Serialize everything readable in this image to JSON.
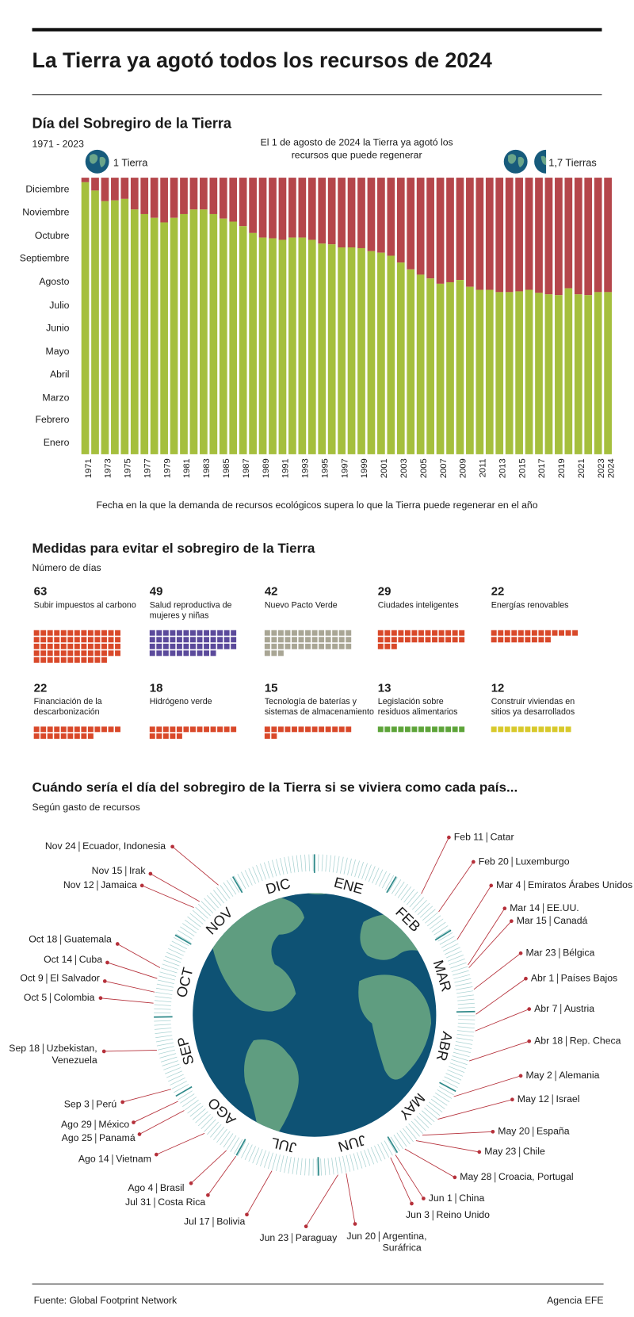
{
  "title": "La Tierra ya agotó todos los recursos de 2024",
  "source": "Fuente: Global Footprint Network",
  "agency": "Agencia EFE",
  "chart_data": [
    {
      "type": "bar",
      "title": "Día del Sobregiro de la Tierra",
      "subtitle": "1971 - 2023",
      "note": [
        "El 1 de agosto de 2024 la Tierra ya agotó los",
        "recursos que puede regenerar"
      ],
      "annotations": [
        "1 Tierra",
        "1,7 Tierras"
      ],
      "caption": "Fecha en la que la demanda de recursos ecológicos supera lo que la Tierra puede regenerar en el año",
      "categories": [
        "1971",
        null,
        "1973",
        null,
        "1975",
        null,
        "1977",
        null,
        "1979",
        null,
        "1981",
        null,
        "1983",
        null,
        "1985",
        null,
        "1987",
        null,
        "1989",
        null,
        "1991",
        null,
        "1993",
        null,
        "1995",
        null,
        "1997",
        null,
        "1999",
        null,
        "2001",
        null,
        "2003",
        null,
        "2005",
        null,
        "2007",
        null,
        "2009",
        null,
        "2011",
        null,
        "2013",
        null,
        "2015",
        null,
        "2017",
        null,
        "2019",
        null,
        "2021",
        null,
        "2023",
        "2024"
      ],
      "values": [
        359,
        348,
        334,
        335,
        337,
        323,
        317,
        312,
        306,
        312,
        317,
        323,
        323,
        317,
        311,
        307,
        301,
        292,
        286,
        285,
        283,
        286,
        286,
        283,
        278,
        277,
        273,
        273,
        272,
        268,
        266,
        262,
        253,
        244,
        237,
        232,
        225,
        227,
        230,
        221,
        217,
        217,
        214,
        214,
        215,
        217,
        213,
        211,
        210,
        219,
        211,
        210,
        214,
        214
      ],
      "color": "#a5bf3d",
      "remainder_color": "#b5464b",
      "ylim": [
        0,
        365
      ],
      "yticks": [
        {
          "value": 15,
          "label": "Enero"
        },
        {
          "value": 45,
          "label": "Febrero"
        },
        {
          "value": 74,
          "label": "Marzo"
        },
        {
          "value": 105,
          "label": "Abril"
        },
        {
          "value": 135,
          "label": "Mayo"
        },
        {
          "value": 166,
          "label": "Junio"
        },
        {
          "value": 196,
          "label": "Julio"
        },
        {
          "value": 227,
          "label": "Agosto"
        },
        {
          "value": 258,
          "label": "Septiembre"
        },
        {
          "value": 288,
          "label": "Octubre"
        },
        {
          "value": 319,
          "label": "Noviembre"
        },
        {
          "value": 349,
          "label": "Diciembre"
        }
      ]
    },
    {
      "type": "waffle",
      "title": "Medidas para evitar el sobregiro de la Tierra",
      "subtitle": "Número de días",
      "items": [
        {
          "value": 63,
          "label": [
            "Subir impuestos al carbono"
          ],
          "color": "#d9492a"
        },
        {
          "value": 49,
          "label": [
            "Salud reproductiva de",
            "mujeres y niñas"
          ],
          "color": "#5b4a9b"
        },
        {
          "value": 42,
          "label": [
            "Nuevo Pacto Verde"
          ],
          "color": "#a9a695"
        },
        {
          "value": 29,
          "label": [
            "Ciudades inteligentes"
          ],
          "color": "#d9492a"
        },
        {
          "value": 22,
          "label": [
            "Energías renovables"
          ],
          "color": "#d9492a"
        },
        {
          "value": 22,
          "label": [
            "Financiación de la",
            "descarbonización"
          ],
          "color": "#d9492a"
        },
        {
          "value": 18,
          "label": [
            "Hidrógeno verde"
          ],
          "color": "#d9492a"
        },
        {
          "value": 15,
          "label": [
            "Tecnología de baterías y",
            "sistemas de almacenamiento"
          ],
          "color": "#d9492a"
        },
        {
          "value": 13,
          "label": [
            "Legislación sobre",
            "residuos alimentarios"
          ],
          "color": "#5ea43a"
        },
        {
          "value": 12,
          "label": [
            "Construir viviendas en",
            "sitios ya desarrollados"
          ],
          "color": "#d8c92b"
        }
      ]
    },
    {
      "type": "radial",
      "title": "Cuándo sería el día del sobregiro de la Tierra si se viviera como cada país...",
      "subtitle": "Según gasto de recursos",
      "ticks": [
        {
          "value": 15,
          "label": "ENE"
        },
        {
          "value": 45,
          "label": "FEB"
        },
        {
          "value": 74,
          "label": "MAR"
        },
        {
          "value": 105,
          "label": "ABR"
        },
        {
          "value": 135,
          "label": "MAY"
        },
        {
          "value": 166,
          "label": "JUN"
        },
        {
          "value": 196,
          "label": "JUL"
        },
        {
          "value": 227,
          "label": "AGO"
        },
        {
          "value": 258,
          "label": "SEP"
        },
        {
          "value": 288,
          "label": "OCT"
        },
        {
          "value": 319,
          "label": "NOV"
        },
        {
          "value": 349,
          "label": "DIC"
        }
      ],
      "items": [
        {
          "date": "Feb 11",
          "country": [
            "Catar"
          ],
          "day": 42
        },
        {
          "date": "Feb 20",
          "country": [
            "Luxemburgo"
          ],
          "day": 51
        },
        {
          "date": "Mar 4",
          "country": [
            "Emiratos Árabes Unidos"
          ],
          "day": 63
        },
        {
          "date": "Mar 14",
          "country": [
            "EE.UU."
          ],
          "day": 73
        },
        {
          "date": "Mar 15",
          "country": [
            "Canadá"
          ],
          "day": 74
        },
        {
          "date": "Mar 23",
          "country": [
            "Bélgica"
          ],
          "day": 82
        },
        {
          "date": "Abr 1",
          "country": [
            "Países Bajos"
          ],
          "day": 91
        },
        {
          "date": "Abr 7",
          "country": [
            "Austria"
          ],
          "day": 97
        },
        {
          "date": "Abr 18",
          "country": [
            "Rep. Checa"
          ],
          "day": 108
        },
        {
          "date": "May 2",
          "country": [
            "Alemania"
          ],
          "day": 122
        },
        {
          "date": "May 12",
          "country": [
            "Israel"
          ],
          "day": 132
        },
        {
          "date": "May 20",
          "country": [
            "España"
          ],
          "day": 140
        },
        {
          "date": "May 23",
          "country": [
            "Chile"
          ],
          "day": 143
        },
        {
          "date": "May 28",
          "country": [
            "Croacia, Portugal"
          ],
          "day": 148
        },
        {
          "date": "Jun 1",
          "country": [
            "China"
          ],
          "day": 152
        },
        {
          "date": "Jun 3",
          "country": [
            "Reino Unido"
          ],
          "day": 154
        },
        {
          "date": "Jun 20",
          "country": [
            "Argentina,",
            "Suráfrica"
          ],
          "day": 171
        },
        {
          "date": "Jun 23",
          "country": [
            "Paraguay"
          ],
          "day": 174
        },
        {
          "date": "Jul 17",
          "country": [
            "Bolivia"
          ],
          "day": 198
        },
        {
          "date": "Jul 31",
          "country": [
            "Costa Rica"
          ],
          "day": 212
        },
        {
          "date": "Ago 4",
          "country": [
            "Brasil"
          ],
          "day": 216
        },
        {
          "date": "Ago 14",
          "country": [
            "Vietnam"
          ],
          "day": 226
        },
        {
          "date": "Ago 25",
          "country": [
            "Panamá"
          ],
          "day": 237
        },
        {
          "date": "Ago 29",
          "country": [
            "México"
          ],
          "day": 241
        },
        {
          "date": "Sep 3",
          "country": [
            "Perú"
          ],
          "day": 246
        },
        {
          "date": "Sep 18",
          "country": [
            "Uzbekistan,",
            "Venezuela"
          ],
          "day": 261
        },
        {
          "date": "Oct 5",
          "country": [
            "Colombia"
          ],
          "day": 278
        },
        {
          "date": "Oct 9",
          "country": [
            "El Salvador"
          ],
          "day": 282
        },
        {
          "date": "Oct 14",
          "country": [
            "Cuba"
          ],
          "day": 287
        },
        {
          "date": "Oct 18",
          "country": [
            "Guatemala"
          ],
          "day": 291
        },
        {
          "date": "Nov 12",
          "country": [
            "Jamaica"
          ],
          "day": 316
        },
        {
          "date": "Nov 15",
          "country": [
            "Irak"
          ],
          "day": 319
        },
        {
          "date": "Nov 24",
          "country": [
            "Ecuador, Indonesia"
          ],
          "day": 328
        }
      ]
    }
  ]
}
